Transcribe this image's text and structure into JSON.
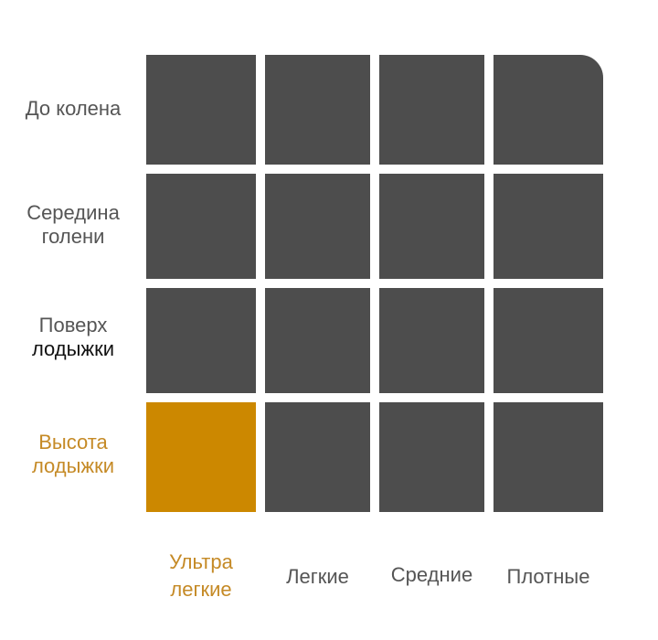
{
  "rows": [
    {
      "line1": "До колена",
      "line2": ""
    },
    {
      "line1": "Середина",
      "line2": "голени"
    },
    {
      "line1": "Поверх",
      "line2": "лодыжки"
    },
    {
      "line1": "Высота",
      "line2": "лодыжки"
    }
  ],
  "columns": [
    {
      "line1": "Ультра",
      "line2": "легкие"
    },
    {
      "line1": "Легкие",
      "line2": ""
    },
    {
      "line1": "Средние",
      "line2": ""
    },
    {
      "line1": "Плотные",
      "line2": ""
    }
  ],
  "selected": {
    "row": "Высота лодыжки",
    "column": "Ультра легкие"
  },
  "colors": {
    "cell": "#4d4d4d",
    "selected": "#cc8800",
    "selected_text": "#c58a26",
    "label": "#555555"
  }
}
